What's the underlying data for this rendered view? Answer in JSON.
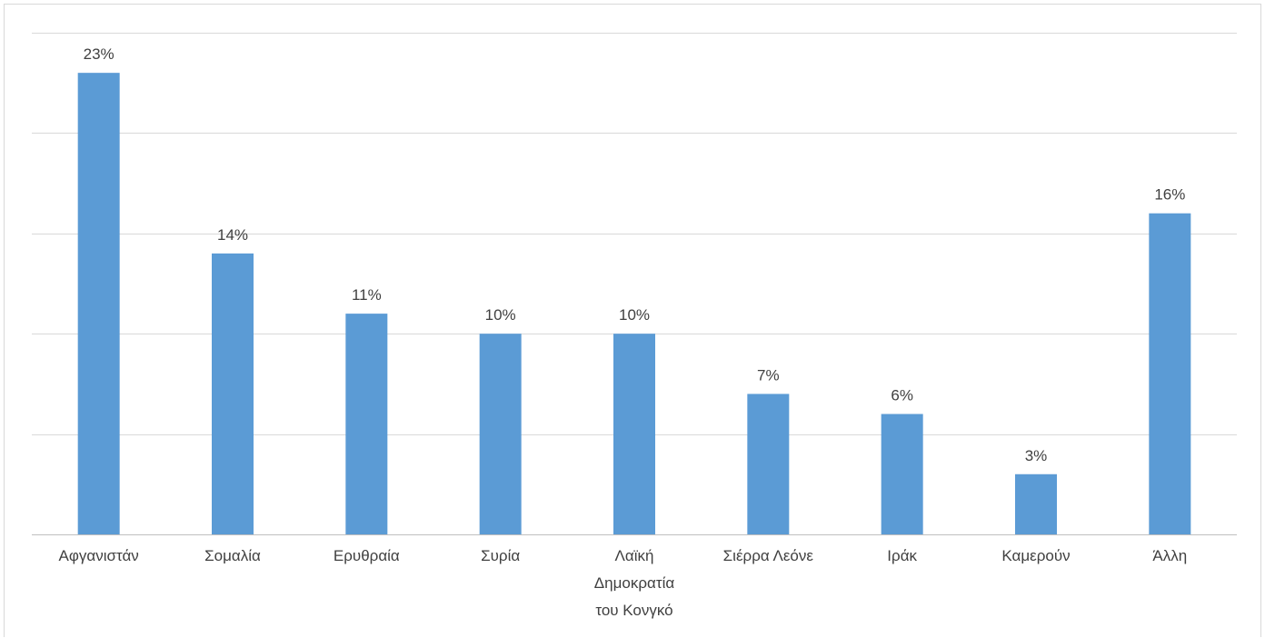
{
  "chart_data": {
    "type": "bar",
    "categories": [
      "Αφγανιστάν",
      "Σομαλία",
      "Ερυθραία",
      "Συρία",
      "Λαϊκή Δημοκρατία του Κονγκό",
      "Σιέρρα Λεόνε",
      "Ιράκ",
      "Καμερούν",
      "Άλλη"
    ],
    "category_lines": [
      [
        "Αφγανιστάν"
      ],
      [
        "Σομαλία"
      ],
      [
        "Ερυθραία"
      ],
      [
        "Συρία"
      ],
      [
        "Λαϊκή",
        "Δημοκρατία",
        "του Κονγκό"
      ],
      [
        "Σιέρρα Λεόνε"
      ],
      [
        "Ιράκ"
      ],
      [
        "Καμερούν"
      ],
      [
        "Άλλη"
      ]
    ],
    "values": [
      23,
      14,
      11,
      10,
      10,
      7,
      6,
      3,
      16
    ],
    "data_labels": [
      "23%",
      "14%",
      "11%",
      "10%",
      "10%",
      "7%",
      "6%",
      "3%",
      "16%"
    ],
    "ylim": [
      0,
      25
    ],
    "gridlines": [
      0,
      5,
      10,
      15,
      20,
      25
    ],
    "grid": true,
    "legend": "none",
    "bar_color": "#5b9bd5",
    "grid_color": "#d9d9d9",
    "text_color": "#404040"
  }
}
